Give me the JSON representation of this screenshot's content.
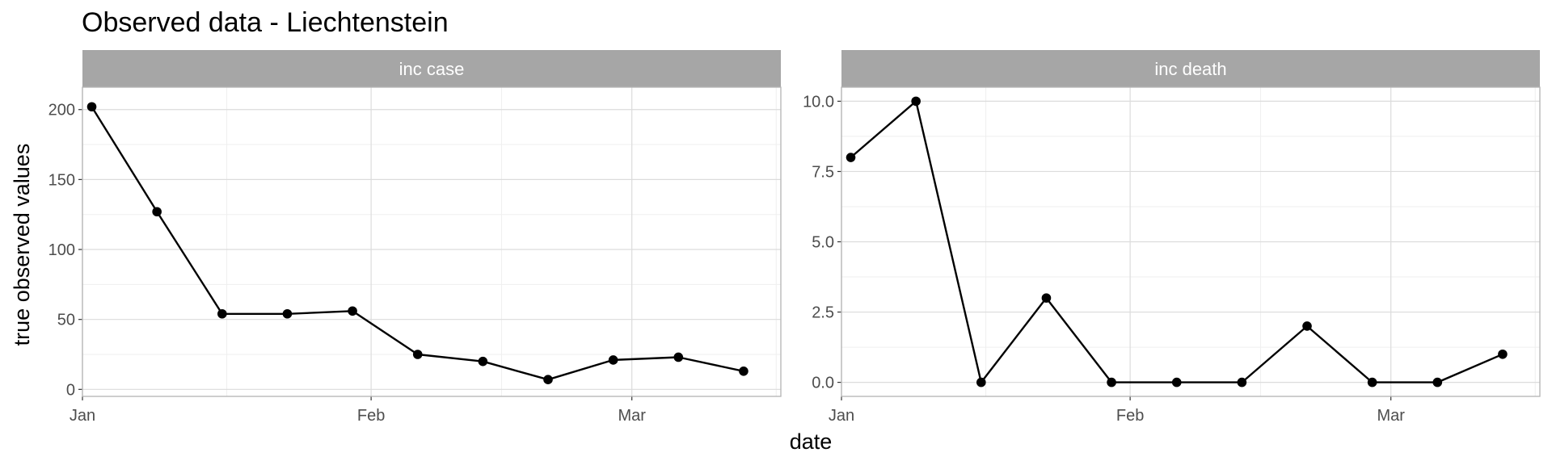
{
  "chart_data": {
    "type": "line",
    "title": "Observed data - Liechtenstein",
    "xlabel": "date",
    "ylabel": "true observed values",
    "grid": true,
    "facets": [
      {
        "strip": "inc case",
        "x": [
          "2021-01-02",
          "2021-01-09",
          "2021-01-16",
          "2021-01-23",
          "2021-01-30",
          "2021-02-06",
          "2021-02-13",
          "2021-02-20",
          "2021-02-27",
          "2021-03-06",
          "2021-03-13"
        ],
        "y": [
          202,
          127,
          54,
          54,
          56,
          25,
          20,
          7,
          21,
          23,
          13
        ],
        "ylim": [
          -5,
          216
        ],
        "yticks": [
          0,
          50,
          100,
          150,
          200
        ],
        "ytick_labels": [
          "0",
          "50",
          "100",
          "150",
          "200"
        ]
      },
      {
        "strip": "inc death",
        "x": [
          "2021-01-02",
          "2021-01-09",
          "2021-01-16",
          "2021-01-23",
          "2021-01-30",
          "2021-02-06",
          "2021-02-13",
          "2021-02-20",
          "2021-02-27",
          "2021-03-06",
          "2021-03-13"
        ],
        "y": [
          8,
          10,
          0,
          3,
          0,
          0,
          0,
          2,
          0,
          0,
          1
        ],
        "ylim": [
          -0.5,
          10.5
        ],
        "yticks": [
          0,
          2.5,
          5,
          7.5,
          10
        ],
        "ytick_labels": [
          "0.0",
          "2.5",
          "5.0",
          "7.5",
          "10.0"
        ]
      }
    ],
    "xlim": [
      "2021-01-01",
      "2021-03-17"
    ],
    "xticks": [
      "2021-01-01",
      "2021-02-01",
      "2021-03-01"
    ],
    "xtick_labels": [
      "Jan",
      "Feb",
      "Mar"
    ],
    "colors": {
      "line": "#000000",
      "point": "#000000",
      "strip": "#a6a6a6",
      "grid_major": "#dcdcdc",
      "grid_minor": "#efefef",
      "border": "#b3b3b3"
    }
  }
}
